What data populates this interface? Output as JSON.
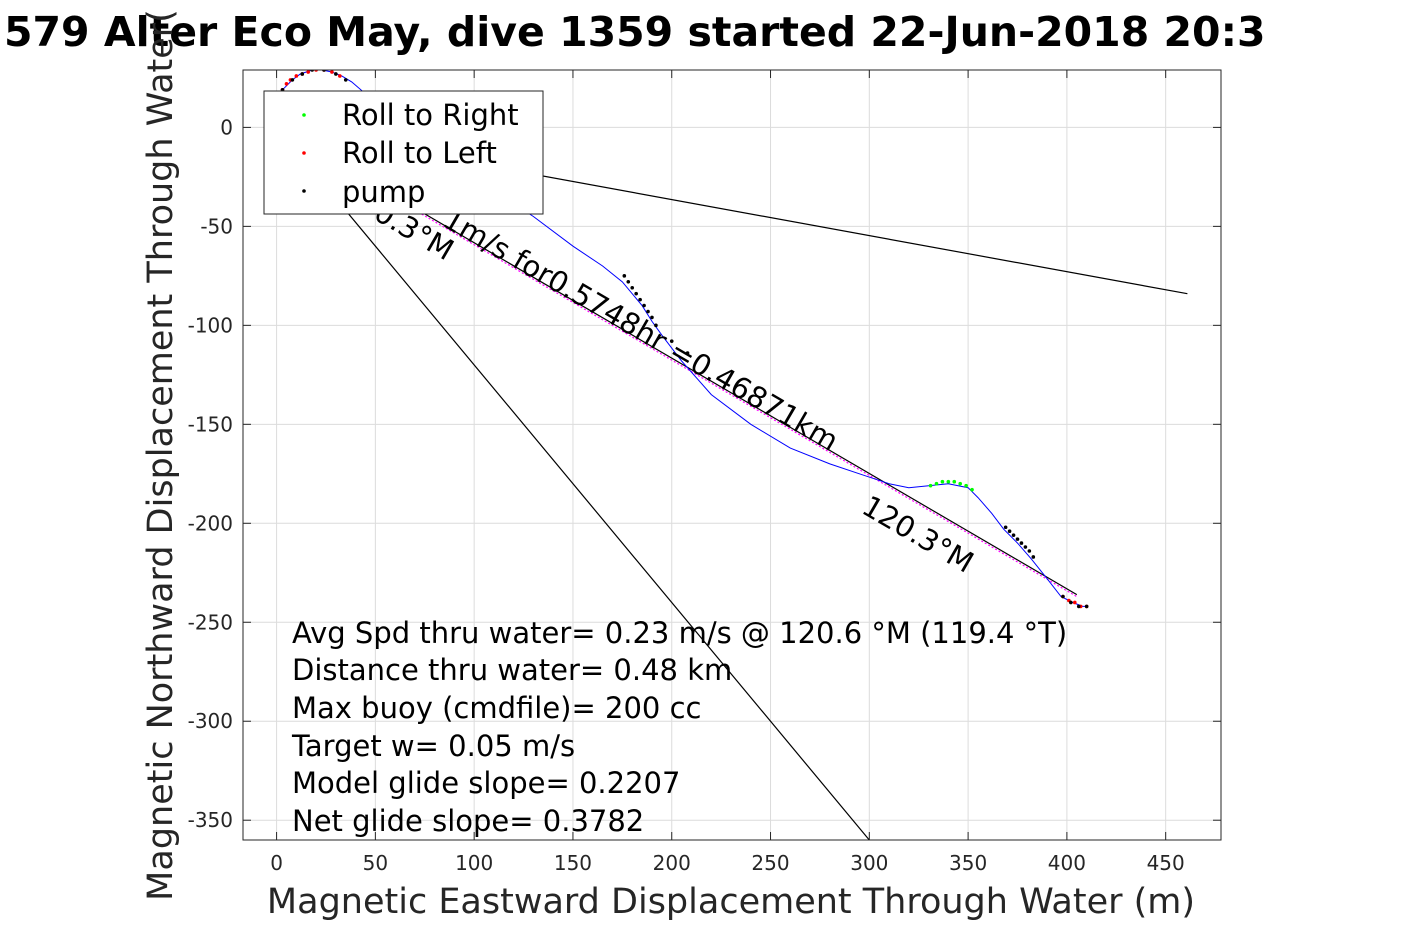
{
  "chart_data": {
    "type": "scatter",
    "title": "579 Alter Eco May, dive 1359 started 22-Jun-2018 20:3",
    "xlabel": "Magnetic Eastward Displacement Through Water (m)",
    "ylabel": "Magnetic Northward Displacement Through Water(",
    "xlim": [
      -17,
      478
    ],
    "ylim": [
      -360,
      29
    ],
    "xticks": [
      0,
      50,
      100,
      150,
      200,
      250,
      300,
      350,
      400,
      450
    ],
    "yticks": [
      0,
      -50,
      -100,
      -150,
      -200,
      -250,
      -300,
      -350
    ],
    "grid": true,
    "legend": {
      "position": "top-left",
      "entries": [
        {
          "label": "Roll to Right",
          "color": "#00ff00"
        },
        {
          "label": "Roll to Left",
          "color": "#ff0000"
        },
        {
          "label": "pump",
          "color": "#000000"
        }
      ]
    },
    "track": {
      "color": "#0000ff",
      "x": [
        3,
        8,
        12,
        18,
        23,
        28,
        33,
        38,
        45,
        55,
        70,
        90,
        110,
        130,
        150,
        165,
        175,
        185,
        190,
        195,
        205,
        220,
        240,
        260,
        280,
        295,
        310,
        320,
        330,
        340,
        350,
        355,
        362,
        368,
        375,
        382,
        390,
        397,
        403,
        408,
        410
      ],
      "y": [
        19,
        24,
        27,
        29,
        29,
        28,
        26,
        23,
        17,
        3,
        -15,
        -23,
        -32,
        -45,
        -60,
        -70,
        -78,
        -90,
        -98,
        -105,
        -118,
        -135,
        -150,
        -162,
        -170,
        -175,
        -180,
        -182,
        -181,
        -180,
        -182,
        -187,
        -195,
        -203,
        -210,
        -218,
        -228,
        -237,
        -240,
        -242,
        -242
      ]
    },
    "markers": {
      "roll_right": {
        "color": "#00ff00",
        "x": [
          331,
          334,
          337,
          340,
          343,
          346,
          349,
          352
        ],
        "y": [
          -181,
          -180,
          -179,
          -179,
          -179,
          -180,
          -181,
          -183
        ]
      },
      "roll_left": {
        "color": "#ff0000",
        "x": [
          3,
          5,
          7,
          10,
          13,
          16,
          20,
          24,
          28,
          32,
          398,
          401,
          404,
          407,
          410
        ],
        "y": [
          19,
          22,
          24,
          26,
          27,
          28,
          29,
          29,
          28,
          26,
          -237,
          -239,
          -240,
          -242,
          -242
        ]
      },
      "pump": {
        "color": "#000000",
        "x": [
          3,
          8,
          13,
          18,
          24,
          30,
          35,
          176,
          178,
          180,
          182,
          184,
          186,
          188,
          190,
          192,
          200,
          208,
          369,
          371,
          373,
          375,
          377,
          379,
          381,
          383,
          398,
          402,
          406,
          410
        ],
        "y": [
          19,
          24,
          27,
          29,
          29,
          27,
          24,
          -75,
          -78,
          -81,
          -84,
          -87,
          -90,
          -93,
          -96,
          -100,
          -108,
          -114,
          -202,
          -204,
          -206,
          -208,
          -210,
          -212,
          -214,
          -217,
          -237,
          -240,
          -242,
          -242
        ]
      }
    },
    "model_line": {
      "color": "#000000",
      "x": [
        0,
        405
      ],
      "y": [
        0,
        -236
      ]
    },
    "heading_line": {
      "color": "#ff00ff",
      "x": [
        0,
        405
      ],
      "y": [
        0,
        -236
      ]
    },
    "cone_lines": [
      {
        "x": [
          0,
          461
        ],
        "y": [
          0,
          -84
        ]
      },
      {
        "x": [
          0,
          300
        ],
        "y": [
          0,
          -360
        ]
      }
    ],
    "annotations": {
      "heading_near": "120.3°M",
      "heading_near_visible": "0.3°M",
      "speed_label": "1m/s for0.5748hr =0.46871km",
      "heading_far": "120.3°M"
    },
    "info_lines": [
      "Avg Spd thru water=  0.23 m/s @ 120.6 °M (119.4 °T)",
      "Distance thru water=  0.48 km",
      "Max buoy (cmdfile)= 200 cc",
      "Target w= 0.05 m/s",
      "Model glide slope= 0.2207",
      "Net glide slope= 0.3782"
    ]
  }
}
